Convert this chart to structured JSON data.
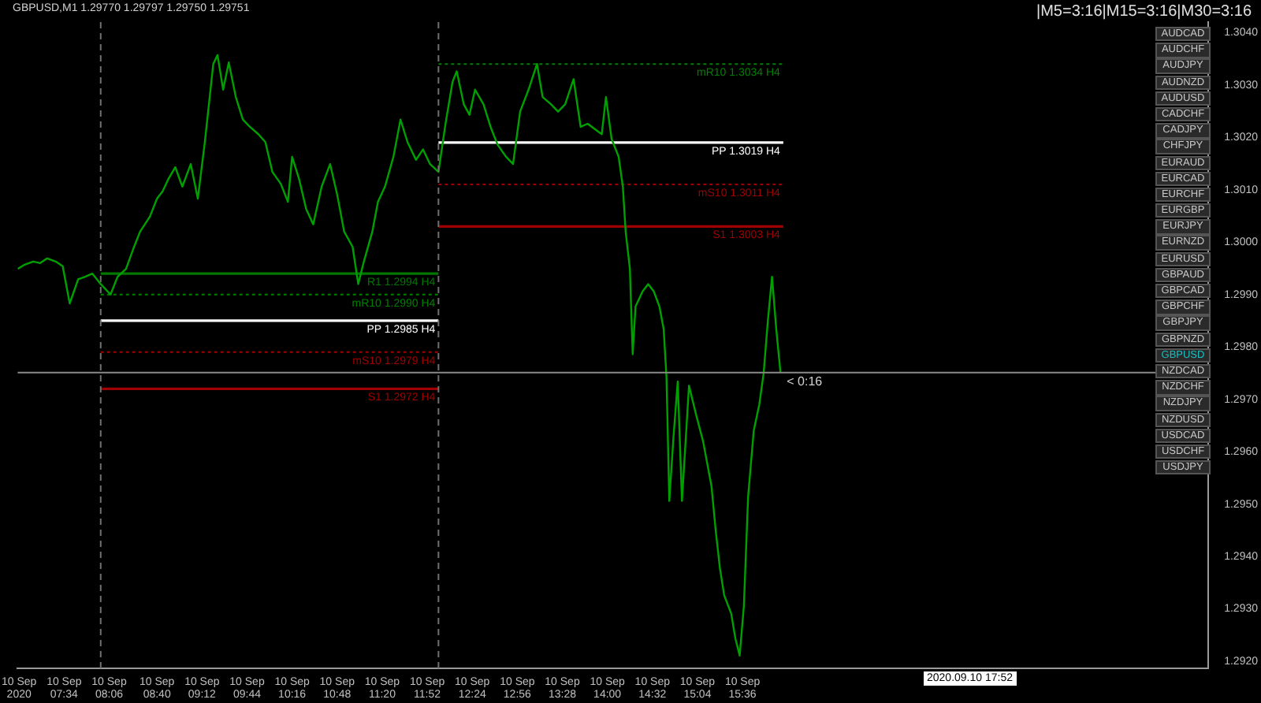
{
  "chart_data": {
    "type": "line",
    "title": "GBPUSD,M1 1.29770 1.29797 1.29750 1.29751",
    "xlim": [
      "2020-09-10T07:01",
      "2020-09-10T21:07"
    ],
    "ylim": [
      1.29186,
      1.3042
    ],
    "yticks": [
      {
        "value": 1.292,
        "label": "1.2920"
      },
      {
        "value": 1.293,
        "label": "1.2930"
      },
      {
        "value": 1.294,
        "label": "1.2940"
      },
      {
        "value": 1.295,
        "label": "1.2950"
      },
      {
        "value": 1.296,
        "label": "1.2960"
      },
      {
        "value": 1.297,
        "label": "1.2970"
      },
      {
        "value": 1.298,
        "label": "1.2980"
      },
      {
        "value": 1.299,
        "label": "1.2990"
      },
      {
        "value": 1.3,
        "label": "1.3000"
      },
      {
        "value": 1.301,
        "label": "1.3010"
      },
      {
        "value": 1.302,
        "label": "1.3020"
      },
      {
        "value": 1.303,
        "label": "1.3030"
      },
      {
        "value": 1.304,
        "label": "1.3040"
      }
    ],
    "grid": false,
    "legend": false,
    "marker": "none",
    "xticks": [
      {
        "value": "2020-09-10T07:02",
        "label": "10 Sep 2020"
      },
      {
        "value": "2020-09-10T07:34",
        "label": "10 Sep 07:34"
      },
      {
        "value": "2020-09-10T08:06",
        "label": "10 Sep 08:06"
      },
      {
        "value": "2020-09-10T08:40",
        "label": "10 Sep 08:40"
      },
      {
        "value": "2020-09-10T09:12",
        "label": "10 Sep 09:12"
      },
      {
        "value": "2020-09-10T09:44",
        "label": "10 Sep 09:44"
      },
      {
        "value": "2020-09-10T10:16",
        "label": "10 Sep 10:16"
      },
      {
        "value": "2020-09-10T10:48",
        "label": "10 Sep 10:48"
      },
      {
        "value": "2020-09-10T11:20",
        "label": "10 Sep 11:20"
      },
      {
        "value": "2020-09-10T11:52",
        "label": "10 Sep 11:52"
      },
      {
        "value": "2020-09-10T12:24",
        "label": "10 Sep 12:24"
      },
      {
        "value": "2020-09-10T12:56",
        "label": "10 Sep 12:56"
      },
      {
        "value": "2020-09-10T13:28",
        "label": "10 Sep 13:28"
      },
      {
        "value": "2020-09-10T14:00",
        "label": "10 Sep 14:00"
      },
      {
        "value": "2020-09-10T14:32",
        "label": "10 Sep 14:32"
      },
      {
        "value": "2020-09-10T15:04",
        "label": "10 Sep 15:04"
      },
      {
        "value": "2020-09-10T15:36",
        "label": "10 Sep 15:36"
      }
    ],
    "series": [
      {
        "color": "#00a000",
        "line_style": "solid",
        "x": [
          "2020-09-10T07:01",
          "2020-09-10T07:06",
          "2020-09-10T07:12",
          "2020-09-10T07:17",
          "2020-09-10T07:22",
          "2020-09-10T07:28",
          "2020-09-10T07:33",
          "2020-09-10T07:38",
          "2020-09-10T07:44",
          "2020-09-10T07:49",
          "2020-09-10T07:54",
          "2020-09-10T08:00",
          "2020-09-10T08:07",
          "2020-09-10T08:12",
          "2020-09-10T08:18",
          "2020-09-10T08:23",
          "2020-09-10T08:28",
          "2020-09-10T08:35",
          "2020-09-10T08:40",
          "2020-09-10T08:44",
          "2020-09-10T08:48",
          "2020-09-10T08:53",
          "2020-09-10T08:58",
          "2020-09-10T09:04",
          "2020-09-10T09:09",
          "2020-09-10T09:14",
          "2020-09-10T09:20",
          "2020-09-10T09:23",
          "2020-09-10T09:27",
          "2020-09-10T09:31",
          "2020-09-10T09:36",
          "2020-09-10T09:41",
          "2020-09-10T09:46",
          "2020-09-10T09:52",
          "2020-09-10T09:57",
          "2020-09-10T10:02",
          "2020-09-10T10:08",
          "2020-09-10T10:13",
          "2020-09-10T10:16",
          "2020-09-10T10:21",
          "2020-09-10T10:26",
          "2020-09-10T10:31",
          "2020-09-10T10:37",
          "2020-09-10T10:43",
          "2020-09-10T10:48",
          "2020-09-10T10:53",
          "2020-09-10T10:59",
          "2020-09-10T11:03",
          "2020-09-10T11:07",
          "2020-09-10T11:13",
          "2020-09-10T11:17",
          "2020-09-10T11:22",
          "2020-09-10T11:28",
          "2020-09-10T11:33",
          "2020-09-10T11:38",
          "2020-09-10T11:44",
          "2020-09-10T11:49",
          "2020-09-10T11:54",
          "2020-09-10T12:00",
          "2020-09-10T12:05",
          "2020-09-10T12:10",
          "2020-09-10T12:13",
          "2020-09-10T12:18",
          "2020-09-10T12:22",
          "2020-09-10T12:26",
          "2020-09-10T12:32",
          "2020-09-10T12:37",
          "2020-09-10T12:42",
          "2020-09-10T12:48",
          "2020-09-10T12:53",
          "2020-09-10T12:58",
          "2020-09-10T13:04",
          "2020-09-10T13:10",
          "2020-09-10T13:14",
          "2020-09-10T13:20",
          "2020-09-10T13:25",
          "2020-09-10T13:30",
          "2020-09-10T13:36",
          "2020-09-10T13:41",
          "2020-09-10T13:46",
          "2020-09-10T13:52",
          "2020-09-10T13:56",
          "2020-09-10T13:59",
          "2020-09-10T14:03",
          "2020-09-10T14:08",
          "2020-09-10T14:11",
          "2020-09-10T14:13",
          "2020-09-10T14:16",
          "2020-09-10T14:18",
          "2020-09-10T14:20",
          "2020-09-10T14:25",
          "2020-09-10T14:29",
          "2020-09-10T14:33",
          "2020-09-10T14:37",
          "2020-09-10T14:40",
          "2020-09-10T14:42",
          "2020-09-10T14:44",
          "2020-09-10T14:47",
          "2020-09-10T14:50",
          "2020-09-10T14:53",
          "2020-09-10T14:58",
          "2020-09-10T15:03",
          "2020-09-10T15:08",
          "2020-09-10T15:14",
          "2020-09-10T15:17",
          "2020-09-10T15:20",
          "2020-09-10T15:23",
          "2020-09-10T15:28",
          "2020-09-10T15:31",
          "2020-09-10T15:34",
          "2020-09-10T15:37",
          "2020-09-10T15:40",
          "2020-09-10T15:44",
          "2020-09-10T15:48",
          "2020-09-10T15:51",
          "2020-09-10T15:54",
          "2020-09-10T15:57",
          "2020-09-10T16:00",
          "2020-09-10T16:03"
        ],
        "values": [
          1.29949,
          1.29957,
          1.29963,
          1.2996,
          1.29969,
          1.29963,
          1.29954,
          1.29883,
          1.29929,
          1.29934,
          1.2994,
          1.2992,
          1.299,
          1.29934,
          1.29949,
          1.29986,
          1.3002,
          1.30049,
          1.30083,
          1.30097,
          1.3012,
          1.30143,
          1.30106,
          1.30149,
          1.30083,
          1.30191,
          1.3034,
          1.30357,
          1.30291,
          1.30343,
          1.30277,
          1.30234,
          1.3022,
          1.30206,
          1.30191,
          1.30134,
          1.30111,
          1.30077,
          1.30163,
          1.3012,
          1.30063,
          1.30034,
          1.30106,
          1.30149,
          1.30091,
          1.3002,
          1.29991,
          1.2992,
          1.29963,
          1.3002,
          1.30077,
          1.30106,
          1.30163,
          1.30234,
          1.30191,
          1.30157,
          1.30177,
          1.30149,
          1.30134,
          1.30226,
          1.30306,
          1.30326,
          1.30263,
          1.30243,
          1.30291,
          1.30263,
          1.3022,
          1.30186,
          1.30163,
          1.30149,
          1.30249,
          1.30291,
          1.3034,
          1.30277,
          1.30263,
          1.30249,
          1.30263,
          1.30311,
          1.3022,
          1.30226,
          1.30214,
          1.30206,
          1.30277,
          1.30197,
          1.30163,
          1.30106,
          1.3002,
          1.29949,
          1.29786,
          1.29877,
          1.29906,
          1.2992,
          1.29906,
          1.29877,
          1.29834,
          1.29743,
          1.29506,
          1.29629,
          1.29734,
          1.29506,
          1.29726,
          1.29671,
          1.2962,
          1.29534,
          1.29449,
          1.29377,
          1.29326,
          1.29291,
          1.29243,
          1.29211,
          1.29306,
          1.29514,
          1.2964,
          1.29691,
          1.29749,
          1.29849,
          1.29934,
          1.29834,
          1.29751
        ]
      },
      {
        "name": "R1 1.2994 H4",
        "color": "#007800",
        "line_style": "solid",
        "x": [
          "2020-09-10T08:00",
          "2020-09-10T12:00"
        ],
        "values": [
          1.2994,
          1.2994
        ]
      },
      {
        "name": "mR10 1.2990 H4",
        "color": "#008000",
        "line_style": "dotted",
        "x": [
          "2020-09-10T08:00",
          "2020-09-10T12:00"
        ],
        "values": [
          1.299,
          1.299
        ]
      },
      {
        "name": "PP 1.2985 H4",
        "color": "#ffffff",
        "line_style": "solid",
        "x": [
          "2020-09-10T08:00",
          "2020-09-10T12:00"
        ],
        "values": [
          1.2985,
          1.2985
        ]
      },
      {
        "name": "mS10 1.2979 H4",
        "color": "#a00000",
        "line_style": "dotted",
        "x": [
          "2020-09-10T08:00",
          "2020-09-10T12:00"
        ],
        "values": [
          1.2979,
          1.2979
        ]
      },
      {
        "name": "S1 1.2972 H4",
        "color": "#a00000",
        "line_style": "solid",
        "x": [
          "2020-09-10T08:00",
          "2020-09-10T12:00"
        ],
        "values": [
          1.2972,
          1.2972
        ]
      },
      {
        "name": "mR10 1.3034 H4",
        "color": "#008000",
        "line_style": "dotted",
        "x": [
          "2020-09-10T12:00",
          "2020-09-10T16:05"
        ],
        "values": [
          1.3034,
          1.3034
        ]
      },
      {
        "name": "PP 1.3019 H4",
        "color": "#ffffff",
        "line_style": "solid",
        "x": [
          "2020-09-10T12:00",
          "2020-09-10T16:05"
        ],
        "values": [
          1.3019,
          1.3019
        ]
      },
      {
        "name": "mS10 1.3011 H4",
        "color": "#a00000",
        "line_style": "dotted",
        "x": [
          "2020-09-10T12:00",
          "2020-09-10T16:05"
        ],
        "values": [
          1.3011,
          1.3011
        ]
      },
      {
        "name": "S1 1.3003 H4",
        "color": "#a00000",
        "line_style": "solid",
        "x": [
          "2020-09-10T12:00",
          "2020-09-10T16:05"
        ],
        "values": [
          1.3003,
          1.3003
        ]
      }
    ],
    "ref_lines": [
      {
        "axis": "x",
        "value": "2020-09-10T08:00",
        "color": "#707070",
        "line_style": "dashed"
      },
      {
        "axis": "x",
        "value": "2020-09-10T12:00",
        "color": "#707070",
        "line_style": "dashed"
      },
      {
        "axis": "y",
        "value": 1.29751,
        "color": "#8a8a8a",
        "line_style": "solid"
      }
    ],
    "annotations": [
      "|M5=3:16|M15=3:16|M30=3:16",
      "< 0:16",
      "2020.09.10 17:52",
      "AUDCAD",
      "AUDCHF",
      "AUDJPY",
      "AUDNZD",
      "AUDUSD",
      "CADCHF",
      "CADJPY",
      "CHFJPY",
      "EURAUD",
      "EURCAD",
      "EURCHF",
      "EURGBP",
      "EURJPY",
      "EURNZD",
      "EURUSD",
      "GBPAUD",
      "GBPCAD",
      "GBPCHF",
      "GBPJPY",
      "GBPNZD",
      "GBPUSD",
      "NZDCAD",
      "NZDCHF",
      "NZDJPY",
      "NZDUSD",
      "USDCAD",
      "USDCHF",
      "USDJPY"
    ]
  }
}
